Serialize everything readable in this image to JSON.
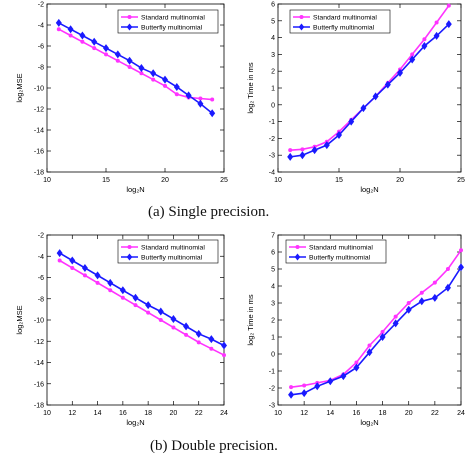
{
  "captions": {
    "a": "(a) Single precision.",
    "b": "(b) Double precision."
  },
  "colors": {
    "standard": "#ff33ff",
    "butterfly": "#1a1aff"
  },
  "chart_data": [
    {
      "type": "line",
      "id": "single-mse",
      "xlabel": "log₂N",
      "ylabel": "log₂MSE",
      "xlim": [
        10,
        25
      ],
      "ylim": [
        -18,
        -2
      ],
      "xticks": [
        10,
        15,
        20,
        25
      ],
      "yticks": [
        -18,
        -16,
        -14,
        -12,
        -10,
        -8,
        -6,
        -4,
        -2
      ],
      "legend": "top-right",
      "grid": false,
      "x": [
        11,
        12,
        13,
        14,
        15,
        16,
        17,
        18,
        19,
        20,
        21,
        22,
        23,
        24
      ],
      "series": [
        {
          "name": "Standard multinomial",
          "color": "#ff33ff",
          "marker": "circle",
          "values": [
            -4.4,
            -5.0,
            -5.6,
            -6.2,
            -6.8,
            -7.4,
            -8.0,
            -8.6,
            -9.2,
            -9.8,
            -10.6,
            -10.9,
            -11.0,
            -11.1
          ]
        },
        {
          "name": "Butterfly multinomial",
          "color": "#1a1aff",
          "marker": "diamond",
          "values": [
            -3.8,
            -4.4,
            -5.0,
            -5.6,
            -6.2,
            -6.8,
            -7.4,
            -8.1,
            -8.6,
            -9.2,
            -9.9,
            -10.7,
            -11.5,
            -12.4
          ]
        }
      ]
    },
    {
      "type": "line",
      "id": "single-time",
      "xlabel": "log₂N",
      "ylabel": "log₂ Time in ms",
      "xlim": [
        10,
        25
      ],
      "ylim": [
        -4,
        6
      ],
      "xticks": [
        10,
        15,
        20,
        25
      ],
      "yticks": [
        -4,
        -3,
        -2,
        -1,
        0,
        1,
        2,
        3,
        4,
        5,
        6
      ],
      "legend": "top-left",
      "grid": false,
      "x": [
        11,
        12,
        13,
        14,
        15,
        16,
        17,
        18,
        19,
        20,
        21,
        22,
        23,
        24
      ],
      "series": [
        {
          "name": "Standard multinomial",
          "color": "#ff33ff",
          "marker": "circle",
          "values": [
            -2.7,
            -2.65,
            -2.5,
            -2.2,
            -1.6,
            -0.9,
            -0.2,
            0.5,
            1.3,
            2.1,
            3.0,
            3.9,
            4.9,
            5.9
          ]
        },
        {
          "name": "Butterfly multinomial",
          "color": "#1a1aff",
          "marker": "diamond",
          "values": [
            -3.1,
            -3.0,
            -2.7,
            -2.4,
            -1.8,
            -1.0,
            -0.2,
            0.5,
            1.2,
            1.9,
            2.7,
            3.5,
            4.1,
            4.8
          ]
        }
      ]
    },
    {
      "type": "line",
      "id": "double-mse",
      "xlabel": "log₂N",
      "ylabel": "log₂MSE",
      "xlim": [
        10,
        24
      ],
      "ylim": [
        -18,
        -2
      ],
      "xticks": [
        10,
        12,
        14,
        16,
        18,
        20,
        22,
        24
      ],
      "yticks": [
        -18,
        -16,
        -14,
        -12,
        -10,
        -8,
        -6,
        -4,
        -2
      ],
      "legend": "top-right",
      "grid": false,
      "x": [
        11,
        12,
        13,
        14,
        15,
        16,
        17,
        18,
        19,
        20,
        21,
        22,
        23,
        24
      ],
      "series": [
        {
          "name": "Standard multinomial",
          "color": "#ff33ff",
          "marker": "circle",
          "values": [
            -4.4,
            -5.1,
            -5.8,
            -6.5,
            -7.2,
            -7.9,
            -8.6,
            -9.3,
            -10.0,
            -10.7,
            -11.4,
            -12.1,
            -12.7,
            -13.3
          ]
        },
        {
          "name": "Butterfly multinomial",
          "color": "#1a1aff",
          "marker": "diamond",
          "values": [
            -3.7,
            -4.4,
            -5.1,
            -5.8,
            -6.5,
            -7.2,
            -7.9,
            -8.6,
            -9.2,
            -9.9,
            -10.6,
            -11.3,
            -11.8,
            -12.4
          ]
        }
      ]
    },
    {
      "type": "line",
      "id": "double-time",
      "xlabel": "log₂N",
      "ylabel": "log₂ Time in ms",
      "xlim": [
        10,
        24
      ],
      "ylim": [
        -3,
        7
      ],
      "xticks": [
        10,
        12,
        14,
        16,
        18,
        20,
        22,
        24
      ],
      "yticks": [
        -3,
        -2,
        -1,
        0,
        1,
        2,
        3,
        4,
        5,
        6,
        7
      ],
      "legend": "top-left",
      "grid": false,
      "x": [
        11,
        12,
        13,
        14,
        15,
        16,
        17,
        18,
        19,
        20,
        21,
        22,
        23,
        24
      ],
      "series": [
        {
          "name": "Standard multinomial",
          "color": "#ff33ff",
          "marker": "circle",
          "values": [
            -1.95,
            -1.85,
            -1.7,
            -1.55,
            -1.2,
            -0.5,
            0.5,
            1.3,
            2.2,
            3.0,
            3.6,
            4.2,
            5.0,
            6.1
          ]
        },
        {
          "name": "Butterfly multinomial",
          "color": "#1a1aff",
          "marker": "diamond",
          "values": [
            -2.4,
            -2.3,
            -1.9,
            -1.6,
            -1.3,
            -0.8,
            0.1,
            1.0,
            1.8,
            2.6,
            3.1,
            3.3,
            3.9,
            5.1
          ]
        }
      ]
    }
  ]
}
